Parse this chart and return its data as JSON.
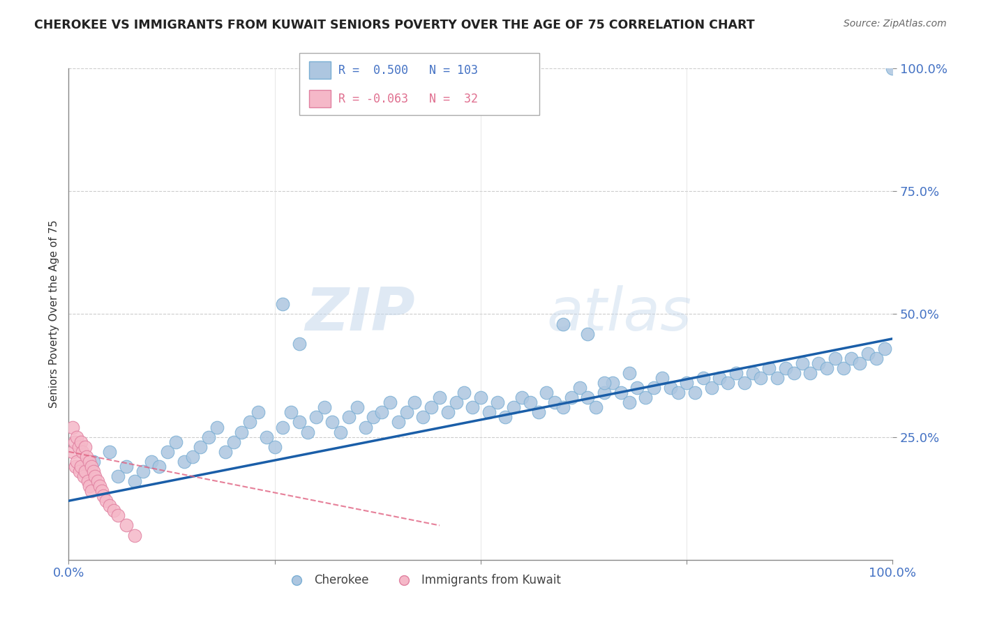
{
  "title": "CHEROKEE VS IMMIGRANTS FROM KUWAIT SENIORS POVERTY OVER THE AGE OF 75 CORRELATION CHART",
  "source": "Source: ZipAtlas.com",
  "ylabel": "Seniors Poverty Over the Age of 75",
  "xlim": [
    0,
    1
  ],
  "ylim": [
    0,
    1
  ],
  "blue_color": "#adc6e0",
  "blue_edge": "#7aafd4",
  "pink_color": "#f5b8c8",
  "pink_edge": "#e080a0",
  "trend_blue": "#1a5ea8",
  "trend_pink": "#e06080",
  "watermark": "ZIPatlas",
  "blue_R": 0.5,
  "blue_N": 103,
  "pink_R": -0.063,
  "pink_N": 32,
  "blue_scatter_x": [
    0.03,
    0.05,
    0.06,
    0.07,
    0.08,
    0.09,
    0.1,
    0.11,
    0.12,
    0.13,
    0.14,
    0.15,
    0.16,
    0.17,
    0.18,
    0.19,
    0.2,
    0.21,
    0.22,
    0.23,
    0.24,
    0.25,
    0.26,
    0.27,
    0.28,
    0.29,
    0.3,
    0.31,
    0.32,
    0.33,
    0.34,
    0.35,
    0.36,
    0.37,
    0.38,
    0.39,
    0.4,
    0.41,
    0.42,
    0.43,
    0.44,
    0.45,
    0.46,
    0.47,
    0.48,
    0.49,
    0.5,
    0.51,
    0.52,
    0.53,
    0.54,
    0.55,
    0.56,
    0.57,
    0.58,
    0.59,
    0.6,
    0.61,
    0.62,
    0.63,
    0.64,
    0.65,
    0.66,
    0.67,
    0.68,
    0.69,
    0.7,
    0.71,
    0.72,
    0.73,
    0.74,
    0.75,
    0.76,
    0.77,
    0.78,
    0.79,
    0.8,
    0.81,
    0.82,
    0.83,
    0.84,
    0.85,
    0.86,
    0.87,
    0.88,
    0.89,
    0.9,
    0.91,
    0.92,
    0.93,
    0.94,
    0.95,
    0.96,
    0.97,
    0.98,
    0.99,
    1.0,
    0.26,
    0.28,
    0.6,
    0.63,
    0.65,
    0.68
  ],
  "blue_scatter_y": [
    0.2,
    0.22,
    0.17,
    0.19,
    0.16,
    0.18,
    0.2,
    0.19,
    0.22,
    0.24,
    0.2,
    0.21,
    0.23,
    0.25,
    0.27,
    0.22,
    0.24,
    0.26,
    0.28,
    0.3,
    0.25,
    0.23,
    0.27,
    0.3,
    0.28,
    0.26,
    0.29,
    0.31,
    0.28,
    0.26,
    0.29,
    0.31,
    0.27,
    0.29,
    0.3,
    0.32,
    0.28,
    0.3,
    0.32,
    0.29,
    0.31,
    0.33,
    0.3,
    0.32,
    0.34,
    0.31,
    0.33,
    0.3,
    0.32,
    0.29,
    0.31,
    0.33,
    0.32,
    0.3,
    0.34,
    0.32,
    0.31,
    0.33,
    0.35,
    0.33,
    0.31,
    0.34,
    0.36,
    0.34,
    0.32,
    0.35,
    0.33,
    0.35,
    0.37,
    0.35,
    0.34,
    0.36,
    0.34,
    0.37,
    0.35,
    0.37,
    0.36,
    0.38,
    0.36,
    0.38,
    0.37,
    0.39,
    0.37,
    0.39,
    0.38,
    0.4,
    0.38,
    0.4,
    0.39,
    0.41,
    0.39,
    0.41,
    0.4,
    0.42,
    0.41,
    0.43,
    1.0,
    0.52,
    0.44,
    0.48,
    0.46,
    0.36,
    0.38
  ],
  "pink_scatter_x": [
    0.005,
    0.005,
    0.007,
    0.008,
    0.01,
    0.01,
    0.012,
    0.013,
    0.015,
    0.015,
    0.017,
    0.018,
    0.02,
    0.02,
    0.022,
    0.023,
    0.025,
    0.025,
    0.028,
    0.028,
    0.03,
    0.032,
    0.035,
    0.038,
    0.04,
    0.042,
    0.045,
    0.05,
    0.055,
    0.06,
    0.07,
    0.08
  ],
  "pink_scatter_y": [
    0.27,
    0.22,
    0.24,
    0.19,
    0.25,
    0.2,
    0.23,
    0.18,
    0.24,
    0.19,
    0.22,
    0.17,
    0.23,
    0.18,
    0.21,
    0.16,
    0.2,
    0.15,
    0.19,
    0.14,
    0.18,
    0.17,
    0.16,
    0.15,
    0.14,
    0.13,
    0.12,
    0.11,
    0.1,
    0.09,
    0.07,
    0.05
  ],
  "blue_trend_x": [
    0.0,
    1.0
  ],
  "blue_trend_y": [
    0.12,
    0.45
  ],
  "pink_trend_x": [
    0.0,
    0.45
  ],
  "pink_trend_y": [
    0.22,
    0.07
  ]
}
